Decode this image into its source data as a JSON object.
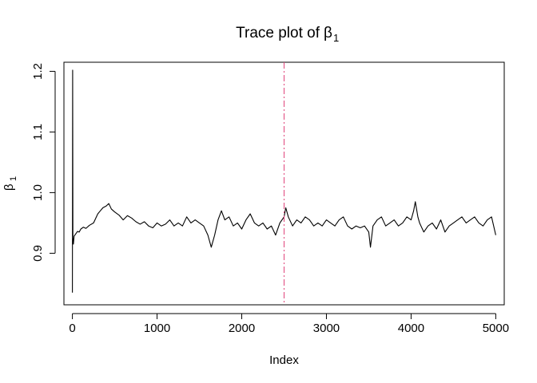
{
  "chart_data": {
    "type": "line",
    "title": "Trace plot of",
    "title_symbol": "β",
    "title_subscript": "1",
    "xlabel": "Index",
    "ylabel_symbol": "β",
    "ylabel_subscript": "1",
    "xlim": [
      -100,
      5100
    ],
    "ylim": [
      0.815,
      1.215
    ],
    "x_ticks": [
      0,
      1000,
      2000,
      3000,
      4000,
      5000
    ],
    "x_tick_labels": [
      "0",
      "1000",
      "2000",
      "3000",
      "4000",
      "5000"
    ],
    "y_ticks": [
      0.9,
      1.0,
      1.1,
      1.2
    ],
    "y_tick_labels": [
      "0.9",
      "1.0",
      "1.1",
      "1.2"
    ],
    "grid": false,
    "legend": "none",
    "series": [
      {
        "color": "#000000",
        "points": [
          [
            0,
            0.835
          ],
          [
            3,
            1.202
          ],
          [
            6,
            0.925
          ],
          [
            12,
            0.915
          ],
          [
            20,
            0.928
          ],
          [
            40,
            0.932
          ],
          [
            60,
            0.936
          ],
          [
            80,
            0.935
          ],
          [
            100,
            0.94
          ],
          [
            130,
            0.943
          ],
          [
            160,
            0.941
          ],
          [
            200,
            0.946
          ],
          [
            250,
            0.95
          ],
          [
            300,
            0.965
          ],
          [
            330,
            0.97
          ],
          [
            360,
            0.975
          ],
          [
            400,
            0.978
          ],
          [
            430,
            0.982
          ],
          [
            460,
            0.973
          ],
          [
            500,
            0.968
          ],
          [
            550,
            0.963
          ],
          [
            600,
            0.955
          ],
          [
            650,
            0.962
          ],
          [
            700,
            0.958
          ],
          [
            750,
            0.952
          ],
          [
            800,
            0.948
          ],
          [
            850,
            0.952
          ],
          [
            900,
            0.945
          ],
          [
            950,
            0.942
          ],
          [
            1000,
            0.95
          ],
          [
            1050,
            0.945
          ],
          [
            1100,
            0.948
          ],
          [
            1150,
            0.955
          ],
          [
            1200,
            0.945
          ],
          [
            1250,
            0.95
          ],
          [
            1300,
            0.945
          ],
          [
            1350,
            0.96
          ],
          [
            1400,
            0.95
          ],
          [
            1450,
            0.955
          ],
          [
            1500,
            0.95
          ],
          [
            1550,
            0.945
          ],
          [
            1600,
            0.93
          ],
          [
            1640,
            0.91
          ],
          [
            1680,
            0.93
          ],
          [
            1720,
            0.955
          ],
          [
            1760,
            0.97
          ],
          [
            1800,
            0.955
          ],
          [
            1850,
            0.96
          ],
          [
            1900,
            0.945
          ],
          [
            1950,
            0.95
          ],
          [
            2000,
            0.94
          ],
          [
            2050,
            0.955
          ],
          [
            2100,
            0.965
          ],
          [
            2150,
            0.95
          ],
          [
            2200,
            0.945
          ],
          [
            2250,
            0.95
          ],
          [
            2300,
            0.94
          ],
          [
            2350,
            0.945
          ],
          [
            2400,
            0.93
          ],
          [
            2450,
            0.95
          ],
          [
            2500,
            0.96
          ],
          [
            2520,
            0.975
          ],
          [
            2550,
            0.96
          ],
          [
            2600,
            0.945
          ],
          [
            2650,
            0.955
          ],
          [
            2700,
            0.95
          ],
          [
            2750,
            0.96
          ],
          [
            2800,
            0.955
          ],
          [
            2850,
            0.945
          ],
          [
            2900,
            0.95
          ],
          [
            2950,
            0.945
          ],
          [
            3000,
            0.955
          ],
          [
            3050,
            0.95
          ],
          [
            3100,
            0.945
          ],
          [
            3150,
            0.955
          ],
          [
            3200,
            0.96
          ],
          [
            3250,
            0.945
          ],
          [
            3300,
            0.94
          ],
          [
            3350,
            0.945
          ],
          [
            3400,
            0.942
          ],
          [
            3450,
            0.945
          ],
          [
            3500,
            0.935
          ],
          [
            3520,
            0.91
          ],
          [
            3550,
            0.945
          ],
          [
            3600,
            0.955
          ],
          [
            3650,
            0.96
          ],
          [
            3700,
            0.945
          ],
          [
            3750,
            0.95
          ],
          [
            3800,
            0.955
          ],
          [
            3850,
            0.945
          ],
          [
            3900,
            0.95
          ],
          [
            3950,
            0.96
          ],
          [
            4000,
            0.955
          ],
          [
            4030,
            0.97
          ],
          [
            4050,
            0.985
          ],
          [
            4080,
            0.96
          ],
          [
            4100,
            0.95
          ],
          [
            4150,
            0.935
          ],
          [
            4200,
            0.945
          ],
          [
            4250,
            0.95
          ],
          [
            4300,
            0.94
          ],
          [
            4350,
            0.955
          ],
          [
            4400,
            0.935
          ],
          [
            4450,
            0.945
          ],
          [
            4500,
            0.95
          ],
          [
            4550,
            0.955
          ],
          [
            4600,
            0.96
          ],
          [
            4650,
            0.95
          ],
          [
            4700,
            0.955
          ],
          [
            4750,
            0.96
          ],
          [
            4800,
            0.95
          ],
          [
            4850,
            0.945
          ],
          [
            4900,
            0.955
          ],
          [
            4950,
            0.96
          ],
          [
            5000,
            0.93
          ]
        ]
      }
    ],
    "reference_line": {
      "x": 2500,
      "color": "#e0457b",
      "style": "dashdot"
    }
  }
}
